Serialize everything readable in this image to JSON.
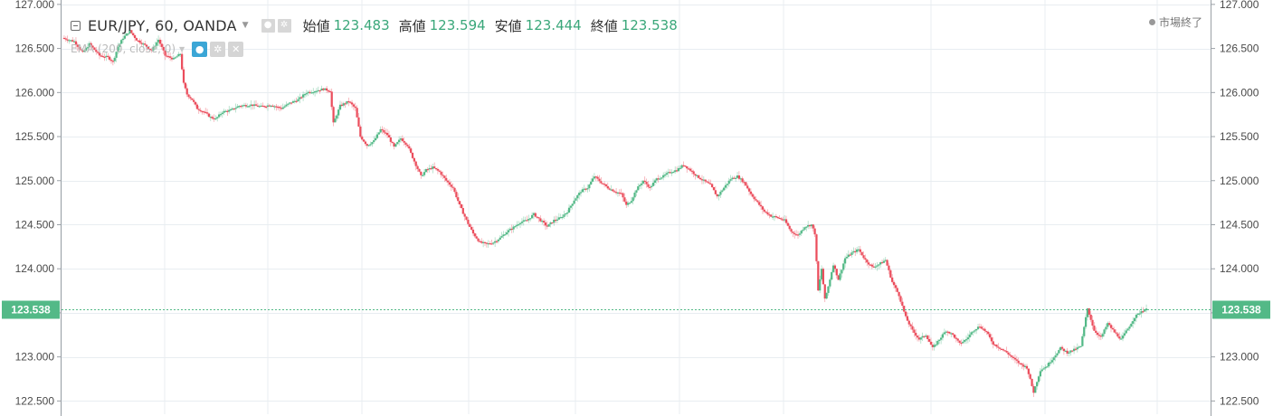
{
  "legend": {
    "symbol_text": "EUR/JPY, 60, OANDA",
    "open_label": "始値",
    "open_value": "123.483",
    "high_label": "高値",
    "high_value": "123.594",
    "low_label": "安値",
    "low_value": "123.444",
    "close_label": "終値",
    "close_value": "123.538",
    "market_status": "市場終了",
    "indicator_text": "EMA (200, close, 0)"
  },
  "icons": {
    "collapse": "collapse-icon",
    "dropdown": "chevron-down-icon",
    "visibility": "eye-icon",
    "settings": "gear-icon",
    "remove": "close-icon"
  },
  "colors": {
    "up": "#53b987",
    "down": "#eb4d5c",
    "last_price": "#53b987",
    "grid": "#e8edf1",
    "ohlc_value": "#3aa77a"
  },
  "chart_data": {
    "type": "candlestick",
    "symbol": "EUR/JPY",
    "interval": "60",
    "source": "OANDA",
    "ylim": [
      122.35,
      127.05
    ],
    "y_ticks": [
      "127.000",
      "126.500",
      "126.000",
      "125.500",
      "125.000",
      "124.500",
      "124.000",
      "123.500",
      "123.000",
      "122.500"
    ],
    "y_tick_values": [
      127.0,
      126.5,
      126.0,
      125.5,
      125.0,
      124.5,
      124.0,
      123.5,
      123.0,
      122.5
    ],
    "last_price": 123.538,
    "last_price_label": "123.538",
    "grid": true,
    "price_axis": "both",
    "path_points": [
      [
        0,
        126.62
      ],
      [
        7,
        126.58
      ],
      [
        12,
        126.45
      ],
      [
        16,
        126.55
      ],
      [
        22,
        126.42
      ],
      [
        27,
        126.4
      ],
      [
        30,
        126.35
      ],
      [
        33,
        126.52
      ],
      [
        36,
        126.62
      ],
      [
        40,
        126.7
      ],
      [
        44,
        126.6
      ],
      [
        48,
        126.55
      ],
      [
        53,
        126.48
      ],
      [
        57,
        126.6
      ],
      [
        61,
        126.42
      ],
      [
        66,
        126.38
      ],
      [
        70,
        126.44
      ],
      [
        72,
        126.1
      ],
      [
        74,
        125.98
      ],
      [
        77,
        125.92
      ],
      [
        80,
        125.82
      ],
      [
        84,
        125.78
      ],
      [
        88,
        125.72
      ],
      [
        91,
        125.7
      ],
      [
        95,
        125.78
      ],
      [
        100,
        125.8
      ],
      [
        105,
        125.85
      ],
      [
        112,
        125.86
      ],
      [
        118,
        125.84
      ],
      [
        124,
        125.86
      ],
      [
        130,
        125.82
      ],
      [
        135,
        125.88
      ],
      [
        140,
        125.92
      ],
      [
        145,
        126.0
      ],
      [
        150,
        126.02
      ],
      [
        155,
        126.04
      ],
      [
        159,
        126.02
      ],
      [
        161,
        125.65
      ],
      [
        165,
        125.85
      ],
      [
        170,
        125.9
      ],
      [
        174,
        125.82
      ],
      [
        177,
        125.5
      ],
      [
        181,
        125.4
      ],
      [
        185,
        125.45
      ],
      [
        189,
        125.58
      ],
      [
        193,
        125.52
      ],
      [
        197,
        125.38
      ],
      [
        201,
        125.48
      ],
      [
        205,
        125.4
      ],
      [
        209,
        125.22
      ],
      [
        213,
        125.05
      ],
      [
        216,
        125.12
      ],
      [
        220,
        125.15
      ],
      [
        224,
        125.1
      ],
      [
        228,
        125.0
      ],
      [
        232,
        124.92
      ],
      [
        236,
        124.72
      ],
      [
        240,
        124.55
      ],
      [
        244,
        124.4
      ],
      [
        248,
        124.3
      ],
      [
        252,
        124.28
      ],
      [
        256,
        124.3
      ],
      [
        260,
        124.35
      ],
      [
        264,
        124.42
      ],
      [
        268,
        124.47
      ],
      [
        272,
        124.53
      ],
      [
        276,
        124.55
      ],
      [
        280,
        124.62
      ],
      [
        284,
        124.55
      ],
      [
        288,
        124.48
      ],
      [
        292,
        124.55
      ],
      [
        296,
        124.58
      ],
      [
        300,
        124.65
      ],
      [
        304,
        124.78
      ],
      [
        308,
        124.88
      ],
      [
        312,
        124.92
      ],
      [
        316,
        125.05
      ],
      [
        320,
        124.98
      ],
      [
        324,
        124.92
      ],
      [
        328,
        124.88
      ],
      [
        332,
        124.85
      ],
      [
        335,
        124.72
      ],
      [
        338,
        124.78
      ],
      [
        341,
        124.9
      ],
      [
        345,
        125.0
      ],
      [
        349,
        124.92
      ],
      [
        353,
        125.02
      ],
      [
        357,
        125.05
      ],
      [
        361,
        125.1
      ],
      [
        365,
        125.12
      ],
      [
        369,
        125.18
      ],
      [
        373,
        125.12
      ],
      [
        377,
        125.05
      ],
      [
        381,
        125.0
      ],
      [
        385,
        124.95
      ],
      [
        389,
        124.82
      ],
      [
        393,
        124.92
      ],
      [
        397,
        125.02
      ],
      [
        401,
        125.05
      ],
      [
        405,
        124.98
      ],
      [
        409,
        124.85
      ],
      [
        413,
        124.75
      ],
      [
        417,
        124.65
      ],
      [
        421,
        124.6
      ],
      [
        425,
        124.58
      ],
      [
        429,
        124.55
      ],
      [
        433,
        124.42
      ],
      [
        437,
        124.38
      ],
      [
        441,
        124.48
      ],
      [
        445,
        124.5
      ],
      [
        447,
        124.4
      ],
      [
        449,
        123.75
      ],
      [
        451,
        124.0
      ],
      [
        453,
        123.65
      ],
      [
        455,
        123.8
      ],
      [
        458,
        124.05
      ],
      [
        461,
        123.88
      ],
      [
        465,
        124.12
      ],
      [
        469,
        124.18
      ],
      [
        473,
        124.22
      ],
      [
        477,
        124.1
      ],
      [
        481,
        124.02
      ],
      [
        485,
        124.05
      ],
      [
        489,
        124.1
      ],
      [
        493,
        123.85
      ],
      [
        497,
        123.7
      ],
      [
        501,
        123.45
      ],
      [
        505,
        123.3
      ],
      [
        509,
        123.2
      ],
      [
        513,
        123.25
      ],
      [
        517,
        123.1
      ],
      [
        521,
        123.2
      ],
      [
        525,
        123.3
      ],
      [
        529,
        123.25
      ],
      [
        533,
        123.15
      ],
      [
        537,
        123.2
      ],
      [
        541,
        123.3
      ],
      [
        545,
        123.35
      ],
      [
        549,
        123.28
      ],
      [
        553,
        123.15
      ],
      [
        557,
        123.1
      ],
      [
        561,
        123.05
      ],
      [
        565,
        122.98
      ],
      [
        569,
        122.92
      ],
      [
        573,
        122.88
      ],
      [
        577,
        122.6
      ],
      [
        581,
        122.85
      ],
      [
        585,
        122.9
      ],
      [
        589,
        123.0
      ],
      [
        593,
        123.1
      ],
      [
        597,
        123.05
      ],
      [
        601,
        123.08
      ],
      [
        605,
        123.12
      ],
      [
        609,
        123.55
      ],
      [
        613,
        123.3
      ],
      [
        617,
        123.22
      ],
      [
        621,
        123.38
      ],
      [
        625,
        123.28
      ],
      [
        629,
        123.2
      ],
      [
        633,
        123.32
      ],
      [
        637,
        123.45
      ],
      [
        641,
        123.52
      ],
      [
        644,
        123.538
      ]
    ]
  }
}
